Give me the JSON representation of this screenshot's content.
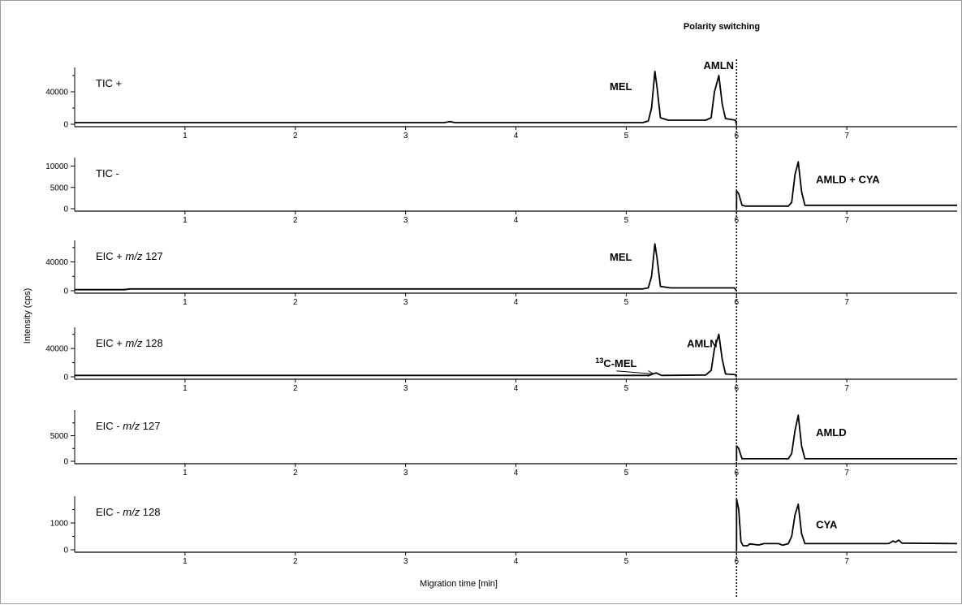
{
  "figure": {
    "polarity_title": "Polarity switching",
    "xlabel": "Migration time [min]",
    "ylabel": "Intensity (cps)"
  },
  "chart_data": {
    "type": "line",
    "xlim": [
      0,
      8
    ],
    "xticks": [
      1,
      2,
      3,
      4,
      5,
      6,
      7
    ],
    "switch_time": 6.0,
    "grid": false,
    "panels": [
      {
        "label_pre": "TIC +",
        "label_italic": "",
        "label_post": "",
        "ylim": [
          0,
          70000
        ],
        "yticks": [
          0,
          40000
        ],
        "minor_yticks": [
          20000,
          60000
        ],
        "points": [
          [
            0,
            2000
          ],
          [
            3.35,
            2000
          ],
          [
            3.4,
            3300
          ],
          [
            3.45,
            2000
          ],
          [
            5.15,
            2000
          ],
          [
            5.2,
            4000
          ],
          [
            5.23,
            20000
          ],
          [
            5.26,
            65000
          ],
          [
            5.28,
            45000
          ],
          [
            5.31,
            8000
          ],
          [
            5.38,
            5000
          ],
          [
            5.72,
            5000
          ],
          [
            5.77,
            8000
          ],
          [
            5.8,
            40000
          ],
          [
            5.84,
            60000
          ],
          [
            5.87,
            25000
          ],
          [
            5.9,
            7000
          ],
          [
            5.99,
            5000
          ],
          [
            6.0,
            0
          ]
        ],
        "peaks": [
          {
            "text": "MEL",
            "x": 4.85,
            "y": 42000
          },
          {
            "text": "AMLN",
            "x": 5.7,
            "y": 68000
          }
        ]
      },
      {
        "label_pre": "TIC -",
        "label_italic": "",
        "label_post": "",
        "ylim": [
          0,
          12000
        ],
        "yticks": [
          0,
          5000,
          10000
        ],
        "minor_yticks": [],
        "points": [
          [
            6.0,
            0
          ],
          [
            6.0,
            4200
          ],
          [
            6.02,
            3500
          ],
          [
            6.05,
            800
          ],
          [
            6.08,
            600
          ],
          [
            6.47,
            600
          ],
          [
            6.5,
            1500
          ],
          [
            6.53,
            8000
          ],
          [
            6.56,
            11000
          ],
          [
            6.59,
            4000
          ],
          [
            6.62,
            800
          ],
          [
            8.0,
            800
          ]
        ],
        "peaks": [
          {
            "text": "AMLD + CYA",
            "x": 6.72,
            "y": 6000
          }
        ]
      },
      {
        "label_pre": "EIC + ",
        "label_italic": "m/z",
        "label_post": " 127",
        "ylim": [
          0,
          70000
        ],
        "yticks": [
          0,
          40000
        ],
        "minor_yticks": [
          20000,
          60000
        ],
        "points": [
          [
            0,
            1500
          ],
          [
            0.45,
            1500
          ],
          [
            0.5,
            2500
          ],
          [
            5.15,
            2500
          ],
          [
            5.2,
            4000
          ],
          [
            5.23,
            20000
          ],
          [
            5.26,
            65000
          ],
          [
            5.28,
            45000
          ],
          [
            5.31,
            6000
          ],
          [
            5.4,
            4000
          ],
          [
            5.98,
            4000
          ],
          [
            6.0,
            0
          ]
        ],
        "peaks": [
          {
            "text": "MEL",
            "x": 4.85,
            "y": 42000
          }
        ]
      },
      {
        "label_pre": "EIC + ",
        "label_italic": "m/z",
        "label_post": " 128",
        "ylim": [
          0,
          70000
        ],
        "yticks": [
          0,
          40000
        ],
        "minor_yticks": [
          20000,
          60000
        ],
        "points": [
          [
            0,
            2000
          ],
          [
            5.2,
            2000
          ],
          [
            5.27,
            5500
          ],
          [
            5.32,
            2000
          ],
          [
            5.72,
            2500
          ],
          [
            5.77,
            9000
          ],
          [
            5.8,
            40000
          ],
          [
            5.84,
            60000
          ],
          [
            5.87,
            25000
          ],
          [
            5.9,
            4000
          ],
          [
            5.99,
            3000
          ],
          [
            6.0,
            0
          ]
        ],
        "peaks": [
          {
            "text": "AMLN",
            "x": 5.55,
            "y": 42000
          }
        ]
      },
      {
        "label_pre": "EIC - ",
        "label_italic": "m/z",
        "label_post": " 127",
        "ylim": [
          0,
          10000
        ],
        "yticks": [
          0,
          5000
        ],
        "minor_yticks": [
          2500,
          7500
        ],
        "points": [
          [
            6.0,
            0
          ],
          [
            6.0,
            3000
          ],
          [
            6.02,
            2500
          ],
          [
            6.05,
            500
          ],
          [
            6.47,
            500
          ],
          [
            6.5,
            1500
          ],
          [
            6.53,
            6000
          ],
          [
            6.56,
            9000
          ],
          [
            6.59,
            3000
          ],
          [
            6.62,
            500
          ],
          [
            8.0,
            500
          ]
        ],
        "peaks": [
          {
            "text": "AMLD",
            "x": 6.72,
            "y": 4900
          }
        ]
      },
      {
        "label_pre": "EIC - ",
        "label_italic": "m/z",
        "label_post": " 128",
        "ylim": [
          0,
          2000
        ],
        "yticks": [
          0,
          1000
        ],
        "minor_yticks": [
          500,
          1500
        ],
        "points": [
          [
            6.0,
            0
          ],
          [
            6.0,
            1900
          ],
          [
            6.02,
            1500
          ],
          [
            6.04,
            300
          ],
          [
            6.06,
            150
          ],
          [
            6.1,
            150
          ],
          [
            6.12,
            220
          ],
          [
            6.2,
            180
          ],
          [
            6.25,
            230
          ],
          [
            6.38,
            230
          ],
          [
            6.42,
            170
          ],
          [
            6.47,
            230
          ],
          [
            6.5,
            500
          ],
          [
            6.53,
            1300
          ],
          [
            6.56,
            1700
          ],
          [
            6.59,
            600
          ],
          [
            6.62,
            230
          ],
          [
            7.38,
            230
          ],
          [
            7.42,
            330
          ],
          [
            7.44,
            280
          ],
          [
            7.47,
            360
          ],
          [
            7.5,
            250
          ],
          [
            8.0,
            230
          ]
        ],
        "peaks": [
          {
            "text": "CYA",
            "x": 6.72,
            "y": 800
          }
        ]
      }
    ],
    "annotations": [
      {
        "panel": 3,
        "sup": "13",
        "text": "C-MEL",
        "x": 4.72,
        "y": 14000,
        "arrow_to": [
          5.25,
          4000
        ]
      }
    ]
  }
}
